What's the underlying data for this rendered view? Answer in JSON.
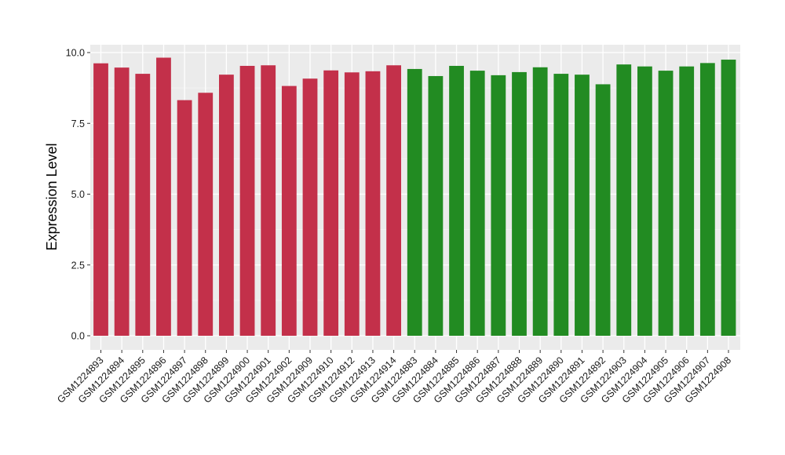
{
  "chart_data": {
    "type": "bar",
    "title": "",
    "xlabel": "",
    "ylabel": "Expression Level",
    "ylim": [
      0,
      10.4
    ],
    "yticks": [
      "0.0",
      "2.5",
      "5.0",
      "7.5",
      "10.0"
    ],
    "ytick_values": [
      0,
      2.5,
      5,
      7.5,
      10
    ],
    "grid": true,
    "legend": "none",
    "panel_color": "#EBEBEB",
    "categories": [
      "GSM1224893",
      "GSM1224894",
      "GSM1224895",
      "GSM1224896",
      "GSM1224897",
      "GSM1224898",
      "GSM1224899",
      "GSM1224900",
      "GSM1224901",
      "GSM1224902",
      "GSM1224909",
      "GSM1224910",
      "GSM1224912",
      "GSM1224913",
      "GSM1224914",
      "GSM1224883",
      "GSM1224884",
      "GSM1224885",
      "GSM1224886",
      "GSM1224887",
      "GSM1224888",
      "GSM1224889",
      "GSM1224890",
      "GSM1224891",
      "GSM1224892",
      "GSM1224903",
      "GSM1224904",
      "GSM1224905",
      "GSM1224906",
      "GSM1224907",
      "GSM1224908"
    ],
    "values": [
      9.62,
      9.47,
      9.25,
      9.82,
      8.32,
      8.58,
      9.22,
      9.53,
      9.55,
      8.82,
      9.08,
      9.37,
      9.3,
      9.34,
      9.55,
      9.42,
      9.17,
      9.53,
      9.36,
      9.2,
      9.31,
      9.48,
      9.25,
      9.22,
      8.88,
      9.58,
      9.51,
      9.36,
      9.51,
      9.63,
      9.75
    ],
    "colors": [
      "#C3304A",
      "#C3304A",
      "#C3304A",
      "#C3304A",
      "#C3304A",
      "#C3304A",
      "#C3304A",
      "#C3304A",
      "#C3304A",
      "#C3304A",
      "#C3304A",
      "#C3304A",
      "#C3304A",
      "#C3304A",
      "#C3304A",
      "#228B22",
      "#228B22",
      "#228B22",
      "#228B22",
      "#228B22",
      "#228B22",
      "#228B22",
      "#228B22",
      "#228B22",
      "#228B22",
      "#228B22",
      "#228B22",
      "#228B22",
      "#228B22",
      "#228B22",
      "#228B22"
    ]
  }
}
